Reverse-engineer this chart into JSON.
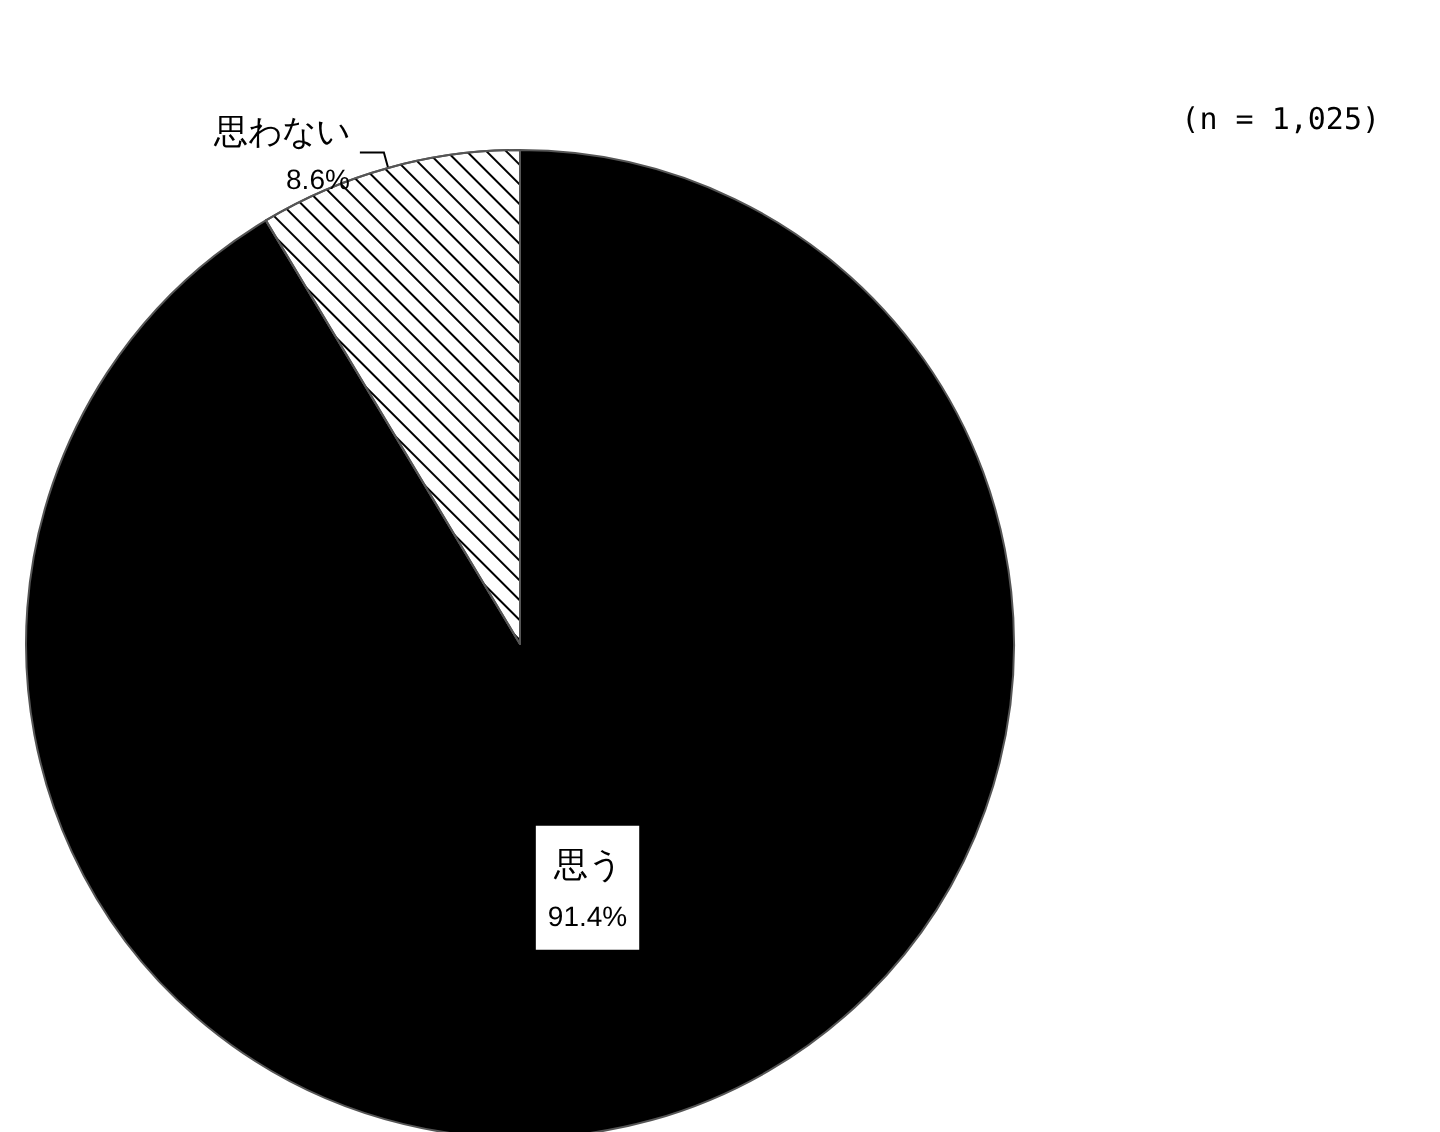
{
  "chart_data": {
    "type": "pie",
    "categories": [
      "思う",
      "思わない"
    ],
    "values": [
      91.4,
      8.6
    ],
    "value_labels": [
      "91.4%",
      "8.6%"
    ],
    "colors": [
      "#000000",
      "#ffffff"
    ],
    "annotations": [
      "(n = 1,025)"
    ],
    "legend": false
  }
}
